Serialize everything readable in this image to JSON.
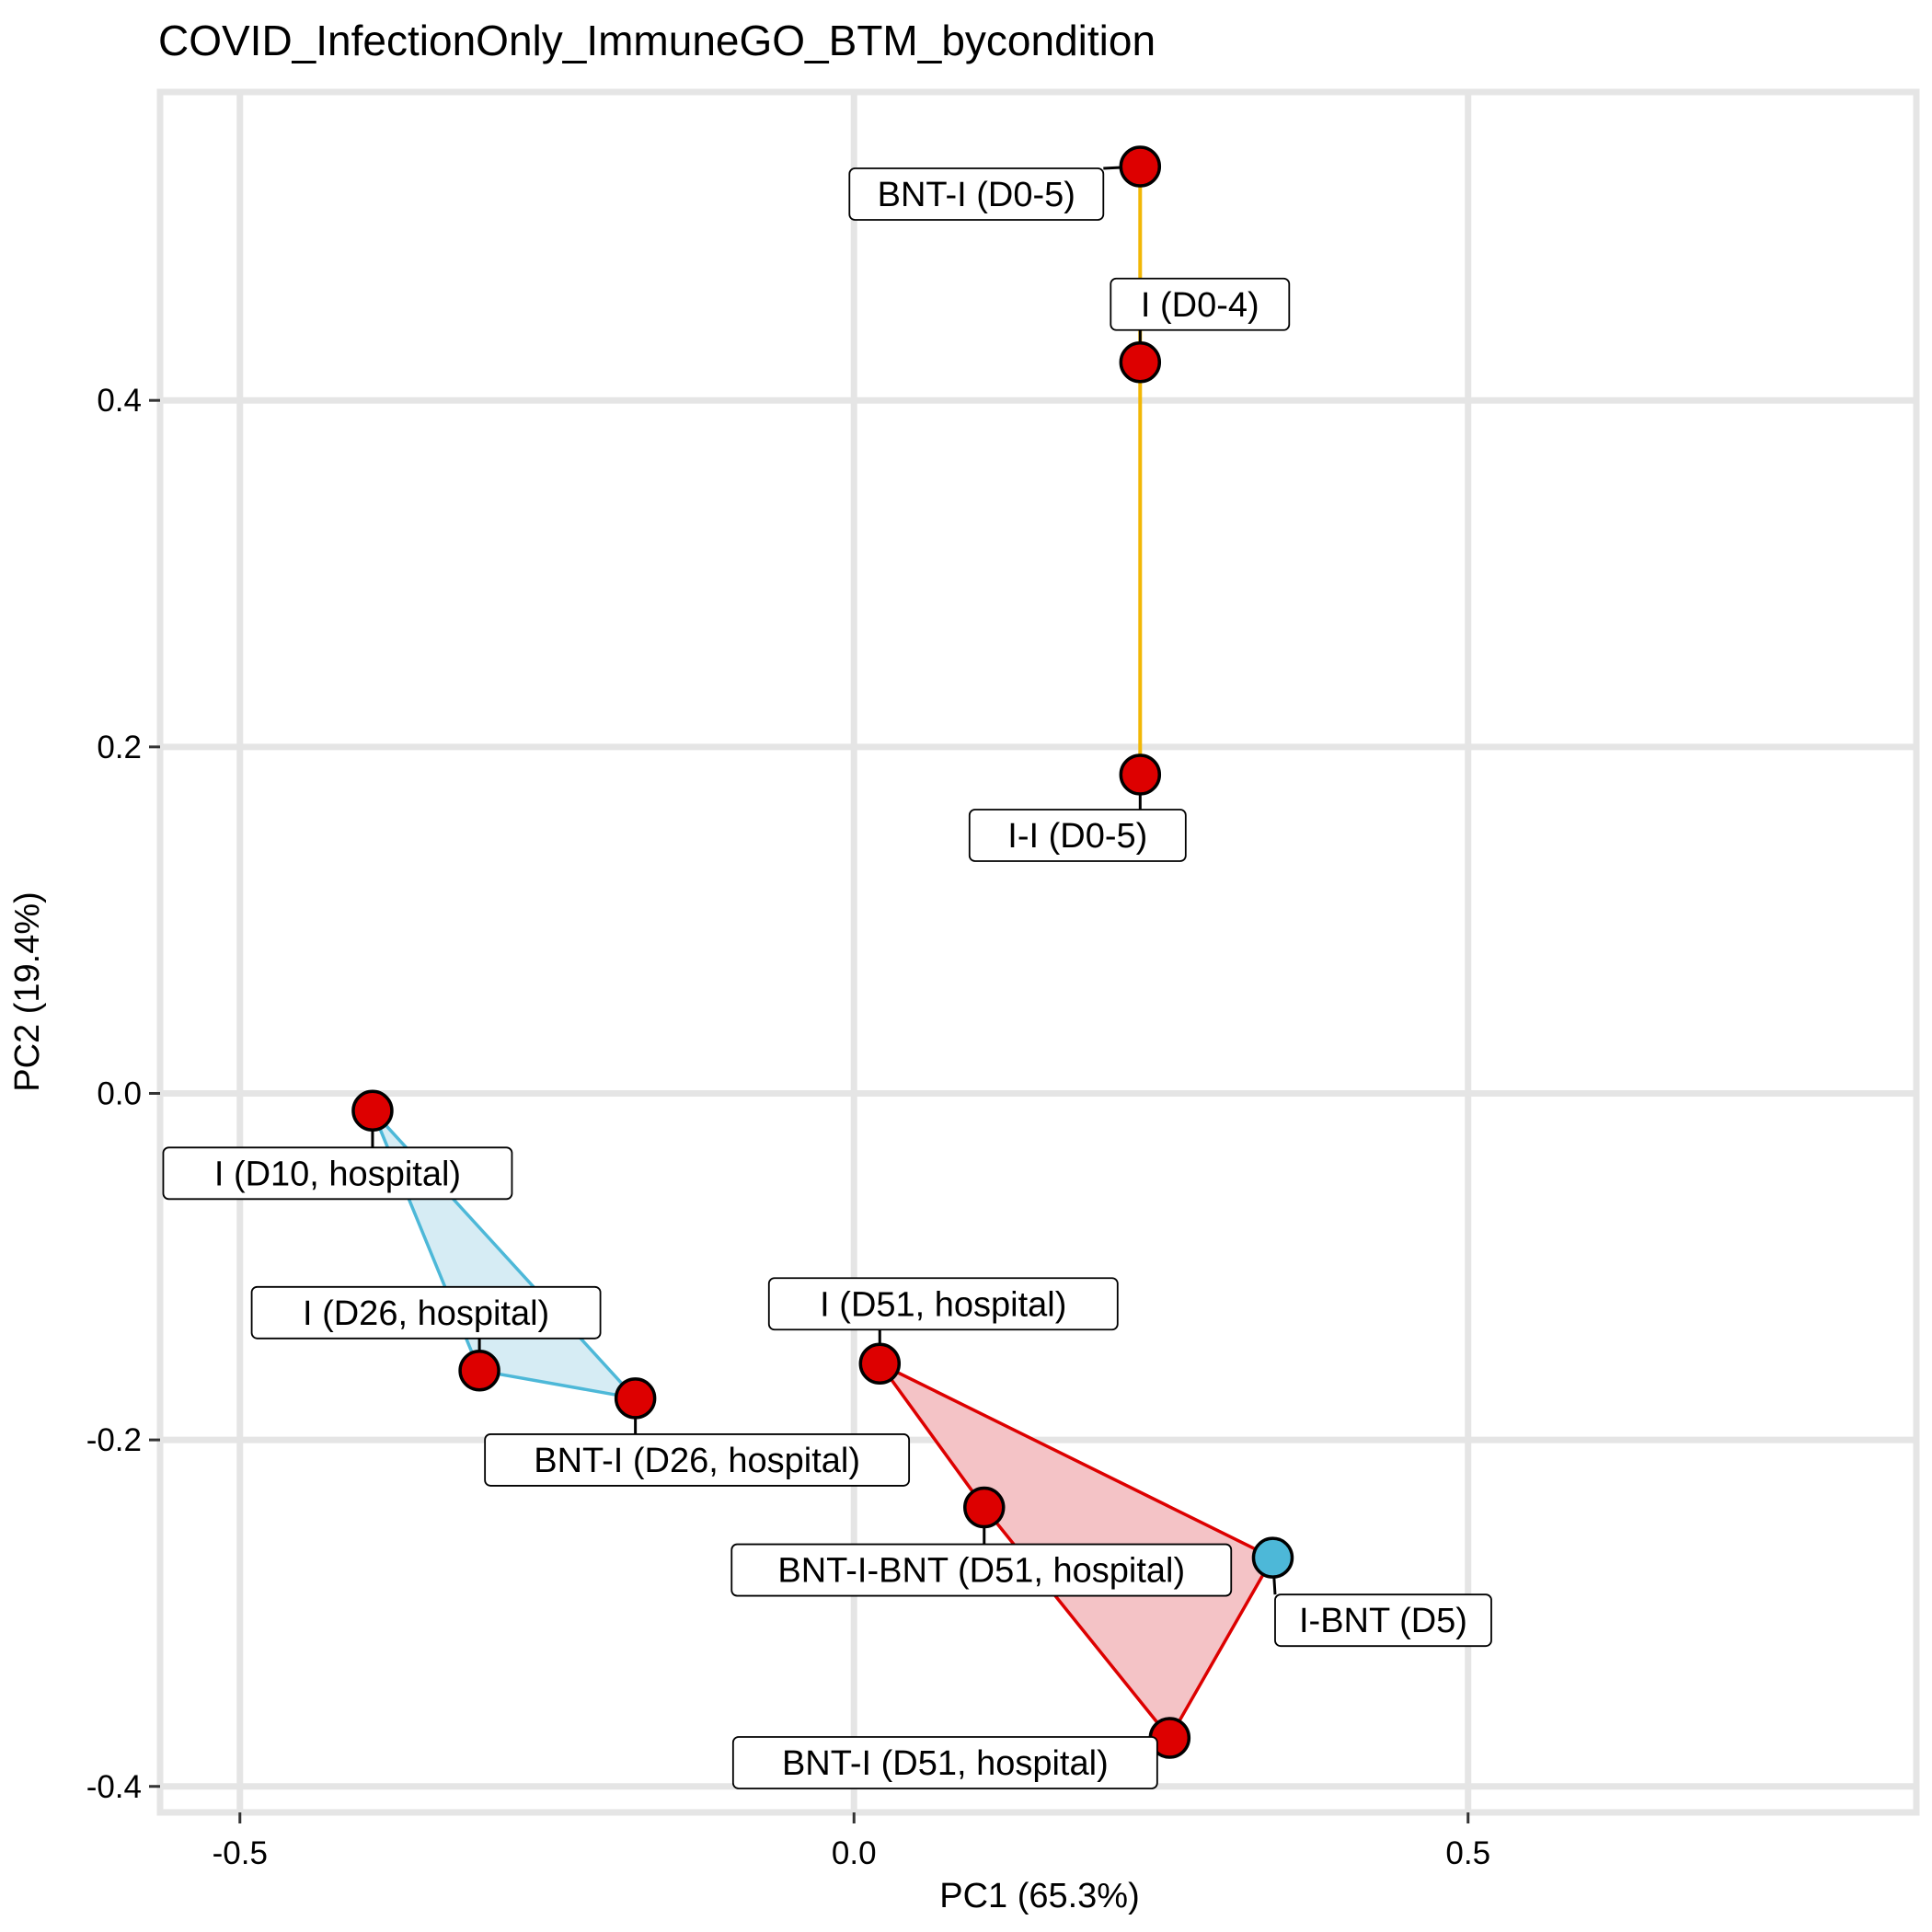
{
  "chart_data": {
    "type": "scatter",
    "title": "COVID_InfectionOnly_ImmuneGO_BTM_bycondition",
    "xlabel": "PC1 (65.3%)",
    "ylabel": "PC2 (19.4%)",
    "xlim": [
      -0.565,
      0.865
    ],
    "ylim": [
      -0.415,
      0.578
    ],
    "x_ticks": [
      -0.5,
      0.0,
      0.5
    ],
    "x_tick_labels": [
      "-0.5",
      "0.0",
      "0.5"
    ],
    "y_ticks": [
      -0.4,
      -0.2,
      0.0,
      0.2,
      0.4
    ],
    "y_tick_labels": [
      "-0.4",
      "-0.2",
      "0.0",
      "0.2",
      "0.4"
    ],
    "grid": true,
    "colors": {
      "red": "#dd0000",
      "blue": "#4db8d8",
      "yellow": "#f2b705",
      "red_fill": "#f4c3c6",
      "blue_fill": "#d6ecf4",
      "grid": "#e5e5e5"
    },
    "points": [
      {
        "label": "BNT-I (D0-5)",
        "x": 0.233,
        "y": 0.535,
        "color": "red"
      },
      {
        "label": "I (D0-4)",
        "x": 0.233,
        "y": 0.422,
        "color": "red"
      },
      {
        "label": "I-I (D0-5)",
        "x": 0.233,
        "y": 0.184,
        "color": "red"
      },
      {
        "label": "I (D10, hospital)",
        "x": -0.392,
        "y": -0.01,
        "color": "red"
      },
      {
        "label": "I (D26, hospital)",
        "x": -0.305,
        "y": -0.16,
        "color": "red"
      },
      {
        "label": "BNT-I (D26, hospital)",
        "x": -0.178,
        "y": -0.176,
        "color": "red"
      },
      {
        "label": "I (D51, hospital)",
        "x": 0.021,
        "y": -0.156,
        "color": "red"
      },
      {
        "label": "BNT-I-BNT (D51, hospital)",
        "x": 0.106,
        "y": -0.239,
        "color": "red"
      },
      {
        "label": "I-BNT (D5)",
        "x": 0.341,
        "y": -0.268,
        "color": "blue"
      },
      {
        "label": "BNT-I (D51, hospital)",
        "x": 0.257,
        "y": -0.372,
        "color": "red"
      }
    ],
    "groups": [
      {
        "shape": "line",
        "color": "yellow",
        "points": [
          0,
          1,
          2
        ]
      },
      {
        "shape": "polygon",
        "color": "blue",
        "fill": "blue_fill",
        "points": [
          3,
          4,
          5
        ]
      },
      {
        "shape": "polygon",
        "color": "red",
        "fill": "red_fill",
        "points": [
          6,
          7,
          9,
          8
        ]
      }
    ]
  }
}
